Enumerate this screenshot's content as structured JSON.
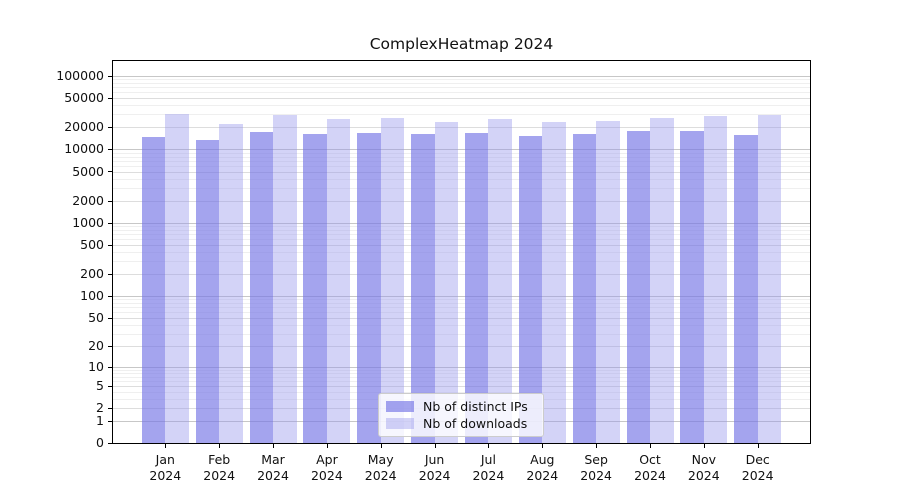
{
  "chart_data": {
    "type": "bar",
    "title": "ComplexHeatmap 2024",
    "categories": [
      "Jan 2024",
      "Feb 2024",
      "Mar 2024",
      "Apr 2024",
      "May 2024",
      "Jun 2024",
      "Jul 2024",
      "Aug 2024",
      "Sep 2024",
      "Oct 2024",
      "Nov 2024",
      "Dec 2024"
    ],
    "series": [
      {
        "name": "Nb of distinct IPs",
        "color": "rgba(117,117,229,0.66)",
        "values": [
          14900,
          13500,
          17100,
          16100,
          16900,
          16100,
          16800,
          15400,
          16100,
          18000,
          17700,
          15900
        ]
      },
      {
        "name": "Nb of downloads",
        "color": "rgba(150,150,235,0.42)",
        "values": [
          30400,
          22000,
          29200,
          26000,
          26800,
          23900,
          25700,
          23700,
          24700,
          26800,
          28500,
          29700
        ]
      }
    ],
    "xlabel": "",
    "ylabel": "",
    "yscale": "log1p",
    "yticks": [
      0,
      1,
      2,
      5,
      10,
      20,
      50,
      100,
      200,
      500,
      1000,
      2000,
      5000,
      10000,
      20000,
      50000,
      100000
    ],
    "ylim": [
      0,
      160000
    ],
    "grid": "both",
    "gridline_colors": {
      "major": "#c7c7c7",
      "mid": "#dddddd",
      "minor": "#efefef"
    },
    "legend_position": "lower-center"
  }
}
